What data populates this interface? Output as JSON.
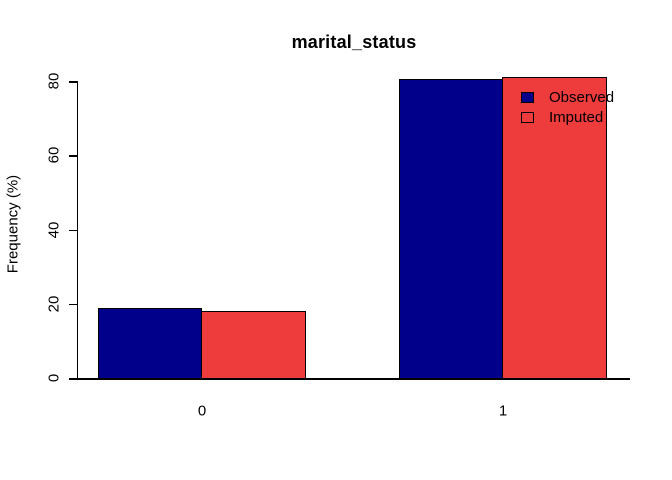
{
  "chart_data": {
    "type": "bar",
    "title": "marital_status",
    "categories": [
      "0",
      "1"
    ],
    "series": [
      {
        "name": "Observed",
        "color": "#00008B",
        "values": [
          18.8,
          80.6
        ]
      },
      {
        "name": "Imputed",
        "color": "#EE3B3B",
        "values": [
          18.1,
          81.1
        ]
      }
    ],
    "xlabel": "",
    "ylabel": "Frequency (%)",
    "ylim": [
      0,
      80
    ],
    "yticks": [
      0,
      20,
      40,
      60,
      80
    ],
    "grid": false,
    "legend_position": "topright",
    "bar_border_color": "#000000",
    "axis_color": "#000000",
    "text_color": "#000000",
    "background": "#FFFFFF"
  }
}
